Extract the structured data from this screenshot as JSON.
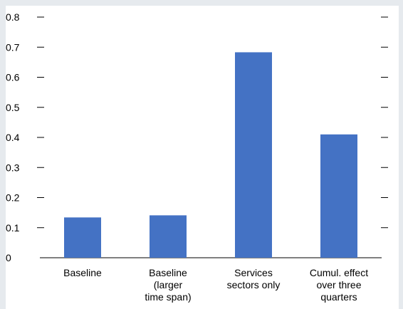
{
  "chart_data": {
    "type": "bar",
    "title": "",
    "xlabel": "",
    "ylabel": "",
    "ylim": [
      0,
      0.8
    ],
    "yticks": [
      "0",
      "0.1",
      "0.2",
      "0.3",
      "0.4",
      "0.5",
      "0.6",
      "0.7",
      "0.8"
    ],
    "grid": false,
    "categories": [
      [
        "Baseline"
      ],
      [
        "Baseline",
        "(larger",
        "time span)"
      ],
      [
        "Services",
        "sectors only"
      ],
      [
        "Cumul. effect",
        "over three",
        "quarters"
      ]
    ],
    "values": [
      0.134,
      0.141,
      0.683,
      0.41
    ],
    "bar_color": "#4472c4"
  }
}
